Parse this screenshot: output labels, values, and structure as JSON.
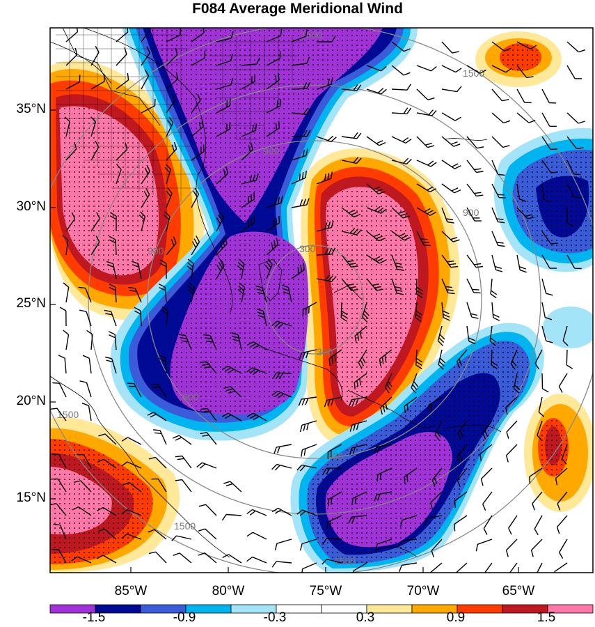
{
  "title": "F084 Average Meridional Wind",
  "lat_labels": [
    "35°N",
    "30°N",
    "25°N",
    "20°N",
    "15°N"
  ],
  "lon_labels": [
    "85°W",
    "80°W",
    "75°W",
    "70°W",
    "65°W"
  ],
  "colorbar": {
    "colors": [
      "#a032d8",
      "#000a94",
      "#3a5cd8",
      "#00b4f0",
      "#a4e4f8",
      "#ffffff",
      "#ffffff",
      "#ffe898",
      "#ffa800",
      "#ff3c00",
      "#c01820",
      "#ff78a8"
    ],
    "labels": [
      "-1.5",
      "-0.9",
      "-0.3",
      "0.3",
      "0.9",
      "1.5"
    ]
  },
  "ring_labels": [
    "300",
    "300",
    "900",
    "900",
    "900",
    "900",
    "900",
    "1500",
    "1500",
    "1500",
    "1500",
    "1500"
  ]
}
